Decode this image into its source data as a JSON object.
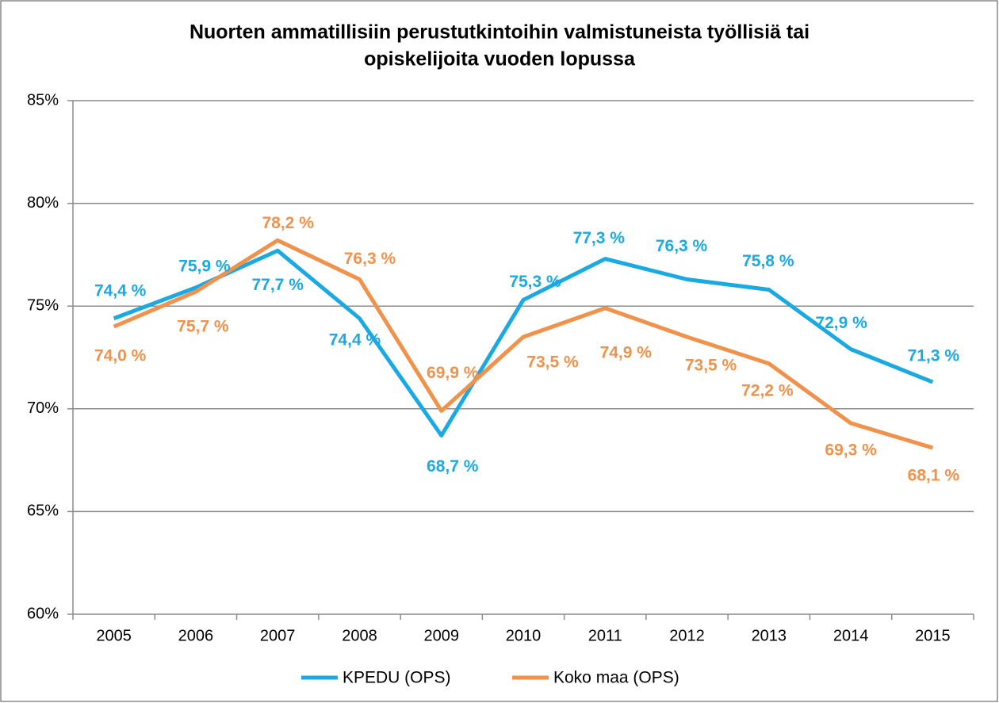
{
  "chart_data": {
    "type": "line",
    "title": [
      "Nuorten ammatillisiin perustutkintoihin valmistuneista työllisiä tai",
      "opiskelijoita vuoden lopussa"
    ],
    "categories": [
      "2005",
      "2006",
      "2007",
      "2008",
      "2009",
      "2010",
      "2011",
      "2012",
      "2013",
      "2014",
      "2015"
    ],
    "series": [
      {
        "name": "KPEDU (OPS)",
        "color": "#1ba9e1",
        "values": [
          74.4,
          75.9,
          77.7,
          74.4,
          68.7,
          75.3,
          77.3,
          76.3,
          75.8,
          72.9,
          71.3
        ],
        "value_labels": [
          "74,4 %",
          "75,9 %",
          "77,7 %",
          "74,4 %",
          "68,7 %",
          "75,3 %",
          "77,3 %",
          "76,3 %",
          "75,8 %",
          "72,9 %",
          "71,3 %"
        ]
      },
      {
        "name": "Koko maa (OPS)",
        "color": "#f0924b",
        "values": [
          74.0,
          75.7,
          78.2,
          76.3,
          69.9,
          73.5,
          74.9,
          73.5,
          72.2,
          69.3,
          68.1
        ],
        "value_labels": [
          "74,0 %",
          "75,7 %",
          "78,2 %",
          "76,3 %",
          "69,9 %",
          "73,5 %",
          "74,9 %",
          "73,5 %",
          "72,2 %",
          "69,3 %",
          "68,1 %"
        ]
      }
    ],
    "ylim": [
      60,
      85
    ],
    "yticks": [
      {
        "value": 60,
        "label": "60%"
      },
      {
        "value": 65,
        "label": "65%"
      },
      {
        "value": 70,
        "label": "70%"
      },
      {
        "value": 75,
        "label": "75%"
      },
      {
        "value": 80,
        "label": "80%"
      },
      {
        "value": 85,
        "label": "85%"
      }
    ],
    "grid": true,
    "legend": "bottom"
  }
}
